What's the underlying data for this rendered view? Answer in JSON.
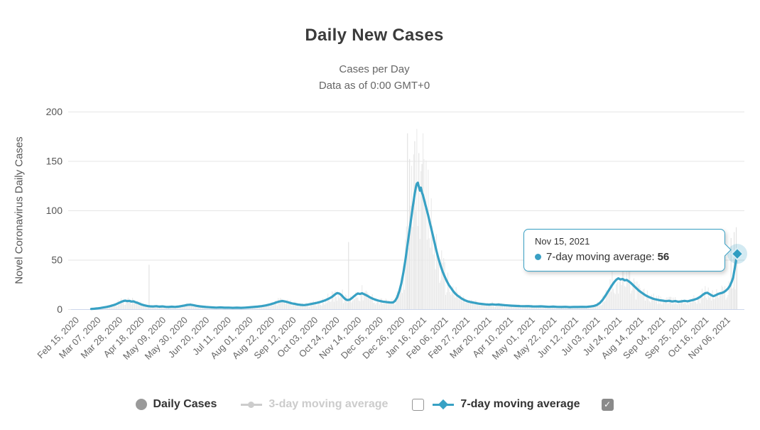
{
  "chart": {
    "title": "Daily New Cases",
    "subtitle_line1": "Cases per Day",
    "subtitle_line2": "Data as of 0:00 GMT+0",
    "y_axis_title": "Novel Coronavirus Daily Cases"
  },
  "tooltip": {
    "date": "Nov 15, 2021",
    "series_label": "7-day moving average:",
    "value": "56"
  },
  "legend": {
    "items": [
      {
        "label": "Daily Cases",
        "marker": "circle",
        "state": "active"
      },
      {
        "label": "3-day moving average",
        "marker": "line-circle",
        "state": "disabled"
      },
      {
        "label": "7-day moving average",
        "marker": "line-diamond",
        "state": "active"
      }
    ],
    "checkbox_3day_checked": false,
    "checkbox_7day_checked": true,
    "check_glyph": "✓"
  },
  "colors": {
    "line": "#38a1c4",
    "tooltip_border": "#3aa0c4",
    "bars": "#eaeaea",
    "bar_spike": "#e0e0e0",
    "grid": "#e6e6e6",
    "axis_line": "#ccd6eb",
    "y_label": "#555555",
    "x_label": "#666666",
    "halo": "#38a1c4",
    "marker_fill": "#2f9dc1",
    "marker_stroke": "#d9edf5",
    "legend_gray": "#9a9a9a",
    "legend_disabled": "#cccccc"
  },
  "chart_data": {
    "type": "line",
    "title": "Daily New Cases",
    "subtitle": [
      "Cases per Day",
      "Data as of 0:00 GMT+0"
    ],
    "ylabel": "Novel Coronavirus Daily Cases",
    "ylim": [
      0,
      200
    ],
    "y_ticks": [
      0,
      50,
      100,
      150,
      200
    ],
    "grid": "horizontal",
    "legend_position": "bottom",
    "x_start_date": "Feb 15, 2020",
    "x_end_day": 639,
    "x_tick_interval_days": 21,
    "x_tick_labels": [
      "Feb 15, 2020",
      "Mar 07, 2020",
      "Mar 28, 2020",
      "Apr 18, 2020",
      "May 09, 2020",
      "May 30, 2020",
      "Jun 20, 2020",
      "Jul 11, 2020",
      "Aug 01, 2020",
      "Aug 22, 2020",
      "Sep 12, 2020",
      "Oct 03, 2020",
      "Oct 24, 2020",
      "Nov 14, 2020",
      "Dec 05, 2020",
      "Dec 26, 2020",
      "Jan 16, 2021",
      "Feb 06, 2021",
      "Feb 27, 2021",
      "Mar 20, 2021",
      "Apr 10, 2021",
      "May 01, 2021",
      "May 22, 2021",
      "Jun 12, 2021",
      "Jul 03, 2021",
      "Jul 24, 2021",
      "Aug 14, 2021",
      "Sep 04, 2021",
      "Sep 25, 2021",
      "Oct 16, 2021",
      "Nov 06, 2021"
    ],
    "series": [
      {
        "name": "Daily Cases",
        "type": "bar",
        "visible": true,
        "note": "daily bars approximated: 7-day average modulated by noise, with visible outlier spikes",
        "noise": {
          "seed": 42,
          "min": 0.45,
          "max": 1.55
        },
        "spikes": {
          "70": 45,
          "263": 68,
          "320": 178,
          "322": 152,
          "327": 170,
          "331": 158,
          "334": 147,
          "633": 72,
          "636": 78,
          "638": 83
        }
      },
      {
        "name": "3-day moving average",
        "type": "line",
        "visible": false
      },
      {
        "name": "7-day moving average",
        "type": "line",
        "visible": true,
        "points_day_value": [
          [
            14,
            0.2
          ],
          [
            17,
            0.4
          ],
          [
            20,
            0.8
          ],
          [
            23,
            1.2
          ],
          [
            26,
            1.7
          ],
          [
            29,
            2.3
          ],
          [
            32,
            3.0
          ],
          [
            35,
            3.9
          ],
          [
            38,
            5.0
          ],
          [
            41,
            6.4
          ],
          [
            43,
            7.4
          ],
          [
            45,
            8.2
          ],
          [
            47,
            8.6
          ],
          [
            49,
            8.1
          ],
          [
            51,
            8.4
          ],
          [
            53,
            7.7
          ],
          [
            55,
            7.9
          ],
          [
            57,
            7.0
          ],
          [
            59,
            6.3
          ],
          [
            61,
            5.4
          ],
          [
            63,
            4.6
          ],
          [
            65,
            4.0
          ],
          [
            67,
            3.5
          ],
          [
            69,
            3.1
          ],
          [
            71,
            2.9
          ],
          [
            74,
            2.7
          ],
          [
            77,
            3.0
          ],
          [
            80,
            2.6
          ],
          [
            83,
            2.8
          ],
          [
            86,
            2.4
          ],
          [
            89,
            2.2
          ],
          [
            92,
            2.5
          ],
          [
            95,
            2.3
          ],
          [
            98,
            2.6
          ],
          [
            101,
            3.1
          ],
          [
            104,
            3.7
          ],
          [
            107,
            4.3
          ],
          [
            110,
            4.5
          ],
          [
            113,
            4.0
          ],
          [
            116,
            3.4
          ],
          [
            119,
            2.9
          ],
          [
            122,
            2.5
          ],
          [
            125,
            2.2
          ],
          [
            128,
            2.0
          ],
          [
            131,
            1.8
          ],
          [
            135,
            1.6
          ],
          [
            139,
            1.8
          ],
          [
            143,
            1.5
          ],
          [
            147,
            1.6
          ],
          [
            151,
            1.4
          ],
          [
            155,
            1.5
          ],
          [
            159,
            1.4
          ],
          [
            163,
            1.6
          ],
          [
            167,
            1.9
          ],
          [
            171,
            2.2
          ],
          [
            175,
            2.6
          ],
          [
            179,
            3.1
          ],
          [
            183,
            3.8
          ],
          [
            187,
            4.8
          ],
          [
            190,
            5.7
          ],
          [
            193,
            6.8
          ],
          [
            196,
            7.8
          ],
          [
            199,
            8.3
          ],
          [
            202,
            7.7
          ],
          [
            205,
            6.8
          ],
          [
            208,
            5.9
          ],
          [
            211,
            5.3
          ],
          [
            214,
            4.7
          ],
          [
            217,
            4.3
          ],
          [
            220,
            4.1
          ],
          [
            223,
            4.5
          ],
          [
            226,
            5.1
          ],
          [
            229,
            5.7
          ],
          [
            232,
            6.3
          ],
          [
            235,
            7.1
          ],
          [
            238,
            8.1
          ],
          [
            241,
            9.3
          ],
          [
            244,
            10.7
          ],
          [
            247,
            12.5
          ],
          [
            250,
            15.0
          ],
          [
            252,
            16.3
          ],
          [
            254,
            15.8
          ],
          [
            256,
            14.3
          ],
          [
            258,
            12.0
          ],
          [
            260,
            10.0
          ],
          [
            262,
            9.2
          ],
          [
            264,
            9.6
          ],
          [
            266,
            11.0
          ],
          [
            268,
            12.8
          ],
          [
            270,
            14.6
          ],
          [
            272,
            15.9
          ],
          [
            274,
            15.4
          ],
          [
            276,
            16.1
          ],
          [
            278,
            15.2
          ],
          [
            280,
            14.2
          ],
          [
            282,
            13.0
          ],
          [
            284,
            11.8
          ],
          [
            286,
            10.8
          ],
          [
            288,
            9.9
          ],
          [
            290,
            9.2
          ],
          [
            292,
            8.6
          ],
          [
            294,
            8.1
          ],
          [
            296,
            7.7
          ],
          [
            298,
            7.4
          ],
          [
            300,
            7.1
          ],
          [
            302,
            6.9
          ],
          [
            304,
            6.7
          ],
          [
            306,
            6.8
          ],
          [
            308,
            8.5
          ],
          [
            310,
            12.0
          ],
          [
            312,
            18.0
          ],
          [
            314,
            26.0
          ],
          [
            316,
            37.0
          ],
          [
            318,
            50.0
          ],
          [
            320,
            65.0
          ],
          [
            322,
            80.0
          ],
          [
            324,
            95.0
          ],
          [
            325,
            103
          ],
          [
            326,
            110
          ],
          [
            327,
            117
          ],
          [
            328,
            123
          ],
          [
            329,
            127
          ],
          [
            330,
            128
          ],
          [
            331,
            124
          ],
          [
            332,
            120
          ],
          [
            333,
            123
          ],
          [
            334,
            118
          ],
          [
            335,
            115
          ],
          [
            336,
            111
          ],
          [
            338,
            103
          ],
          [
            340,
            95
          ],
          [
            342,
            86
          ],
          [
            344,
            77
          ],
          [
            346,
            68
          ],
          [
            348,
            59
          ],
          [
            350,
            51
          ],
          [
            352,
            44
          ],
          [
            354,
            38
          ],
          [
            356,
            33
          ],
          [
            358,
            28.5
          ],
          [
            360,
            24.5
          ],
          [
            362,
            21.5
          ],
          [
            364,
            18.5
          ],
          [
            366,
            16
          ],
          [
            368,
            14
          ],
          [
            370,
            12.5
          ],
          [
            372,
            11
          ],
          [
            374,
            9.8
          ],
          [
            376,
            8.8
          ],
          [
            378,
            8.0
          ],
          [
            381,
            7.2
          ],
          [
            384,
            6.6
          ],
          [
            387,
            6.0
          ],
          [
            390,
            5.5
          ],
          [
            393,
            5.1
          ],
          [
            396,
            4.8
          ],
          [
            399,
            4.6
          ],
          [
            402,
            4.9
          ],
          [
            405,
            4.5
          ],
          [
            408,
            4.7
          ],
          [
            411,
            4.3
          ],
          [
            414,
            4.0
          ],
          [
            417,
            3.8
          ],
          [
            421,
            3.5
          ],
          [
            425,
            3.3
          ],
          [
            429,
            3.1
          ],
          [
            433,
            3.0
          ],
          [
            437,
            3.1
          ],
          [
            441,
            2.8
          ],
          [
            445,
            2.7
          ],
          [
            449,
            2.9
          ],
          [
            453,
            2.6
          ],
          [
            457,
            2.4
          ],
          [
            461,
            2.6
          ],
          [
            465,
            2.3
          ],
          [
            469,
            2.2
          ],
          [
            473,
            2.4
          ],
          [
            477,
            2.1
          ],
          [
            481,
            2.3
          ],
          [
            485,
            2.2
          ],
          [
            489,
            2.4
          ],
          [
            493,
            2.3
          ],
          [
            497,
            2.7
          ],
          [
            500,
            3.2
          ],
          [
            503,
            4.2
          ],
          [
            506,
            6.2
          ],
          [
            509,
            9.8
          ],
          [
            512,
            14.5
          ],
          [
            515,
            19.5
          ],
          [
            518,
            24.5
          ],
          [
            520,
            27.5
          ],
          [
            522,
            29.8
          ],
          [
            524,
            31.2
          ],
          [
            526,
            30.1
          ],
          [
            528,
            30.6
          ],
          [
            530,
            29.2
          ],
          [
            532,
            29.6
          ],
          [
            534,
            28.2
          ],
          [
            536,
            26.6
          ],
          [
            538,
            24.6
          ],
          [
            540,
            22.6
          ],
          [
            542,
            20.6
          ],
          [
            544,
            18.6
          ],
          [
            546,
            17.1
          ],
          [
            548,
            15.6
          ],
          [
            550,
            14.2
          ],
          [
            552,
            13.1
          ],
          [
            554,
            12.1
          ],
          [
            556,
            11.2
          ],
          [
            558,
            10.4
          ],
          [
            561,
            9.7
          ],
          [
            564,
            9.1
          ],
          [
            567,
            8.6
          ],
          [
            570,
            8.1
          ],
          [
            573,
            8.5
          ],
          [
            576,
            7.8
          ],
          [
            579,
            8.2
          ],
          [
            582,
            7.5
          ],
          [
            585,
            7.9
          ],
          [
            588,
            8.4
          ],
          [
            591,
            8.0
          ],
          [
            594,
            8.8
          ],
          [
            597,
            9.5
          ],
          [
            600,
            10.6
          ],
          [
            603,
            12.4
          ],
          [
            606,
            14.8
          ],
          [
            608,
            16.2
          ],
          [
            610,
            16.6
          ],
          [
            612,
            15.4
          ],
          [
            614,
            14.1
          ],
          [
            616,
            13.2
          ],
          [
            618,
            14.0
          ],
          [
            620,
            15.1
          ],
          [
            622,
            16.0
          ],
          [
            624,
            16.4
          ],
          [
            626,
            17.3
          ],
          [
            628,
            18.8
          ],
          [
            630,
            20.8
          ],
          [
            632,
            23.8
          ],
          [
            634,
            28.8
          ],
          [
            635,
            32
          ],
          [
            636,
            38
          ],
          [
            637,
            44
          ],
          [
            638,
            50
          ],
          [
            639,
            56
          ]
        ]
      }
    ],
    "hover_point": {
      "date": "Nov 15, 2021",
      "series": "7-day moving average",
      "value": 56,
      "day": 639
    }
  }
}
